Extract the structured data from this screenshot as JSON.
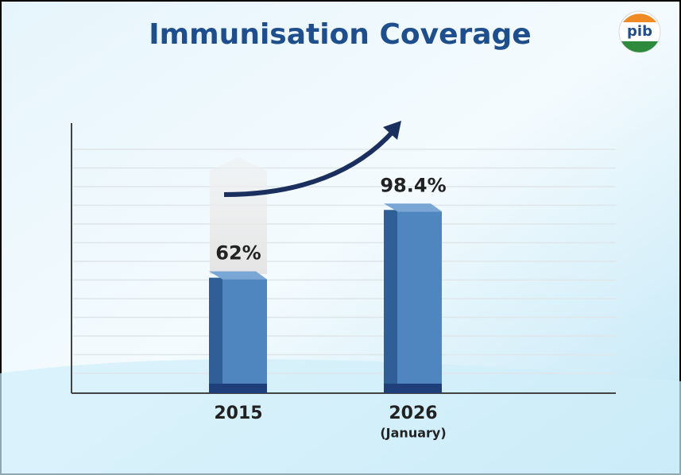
{
  "chart_data": {
    "type": "bar",
    "title": "Immunisation Coverage",
    "categories": [
      "2015",
      "2026"
    ],
    "category_notes": [
      null,
      "(January)"
    ],
    "values": [
      62,
      98.4
    ],
    "value_labels": [
      "62%",
      "98.4%"
    ],
    "color": "#4f86bf",
    "ylim": [
      0,
      145
    ],
    "grid": true
  }
}
